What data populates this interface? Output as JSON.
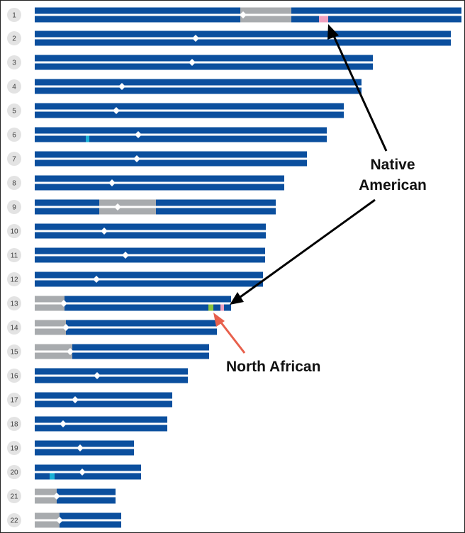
{
  "annotations": {
    "native_american": [
      "Native",
      "American"
    ],
    "north_african": "North African"
  },
  "colors": {
    "primary": "#0b4f9e",
    "gray": "#a8abae",
    "native_american": "#f0a1bf",
    "north_african": "#8cc63f",
    "cyan": "#1bb1d6",
    "number_badge": "#e3e3e3",
    "arrow_black": "#000000",
    "arrow_red": "#e8604c"
  },
  "chromosomes": [
    {
      "number": "1",
      "top": [
        {
          "ancestry": "primary"
        },
        {
          "ancestry": "gray"
        },
        {
          "ancestry": "primary"
        }
      ],
      "bottom": [
        {
          "ancestry": "primary"
        },
        {
          "ancestry": "gray"
        },
        {
          "ancestry": "primary"
        },
        {
          "ancestry": "native_american"
        },
        {
          "ancestry": "primary"
        }
      ]
    },
    {
      "number": "2",
      "top": [
        {
          "ancestry": "primary"
        }
      ],
      "bottom": [
        {
          "ancestry": "primary"
        }
      ]
    },
    {
      "number": "3",
      "top": [
        {
          "ancestry": "primary"
        }
      ],
      "bottom": [
        {
          "ancestry": "primary"
        }
      ]
    },
    {
      "number": "4",
      "top": [
        {
          "ancestry": "primary"
        }
      ],
      "bottom": [
        {
          "ancestry": "primary"
        }
      ]
    },
    {
      "number": "5",
      "top": [
        {
          "ancestry": "primary"
        }
      ],
      "bottom": [
        {
          "ancestry": "primary"
        }
      ]
    },
    {
      "number": "6",
      "top": [
        {
          "ancestry": "primary"
        }
      ],
      "bottom": [
        {
          "ancestry": "primary"
        },
        {
          "ancestry": "cyan"
        },
        {
          "ancestry": "primary"
        }
      ]
    },
    {
      "number": "7",
      "top": [
        {
          "ancestry": "primary"
        }
      ],
      "bottom": [
        {
          "ancestry": "primary"
        }
      ]
    },
    {
      "number": "8",
      "top": [
        {
          "ancestry": "primary"
        }
      ],
      "bottom": [
        {
          "ancestry": "primary"
        }
      ]
    },
    {
      "number": "9",
      "top": [
        {
          "ancestry": "primary"
        },
        {
          "ancestry": "gray"
        },
        {
          "ancestry": "primary"
        }
      ],
      "bottom": [
        {
          "ancestry": "primary"
        },
        {
          "ancestry": "gray"
        },
        {
          "ancestry": "primary"
        }
      ]
    },
    {
      "number": "10",
      "top": [
        {
          "ancestry": "primary"
        }
      ],
      "bottom": [
        {
          "ancestry": "primary"
        }
      ]
    },
    {
      "number": "11",
      "top": [
        {
          "ancestry": "primary"
        }
      ],
      "bottom": [
        {
          "ancestry": "primary"
        }
      ]
    },
    {
      "number": "12",
      "top": [
        {
          "ancestry": "primary"
        }
      ],
      "bottom": [
        {
          "ancestry": "primary"
        }
      ]
    },
    {
      "number": "13",
      "top": [
        {
          "ancestry": "gray"
        },
        {
          "ancestry": "primary"
        }
      ],
      "bottom": [
        {
          "ancestry": "gray"
        },
        {
          "ancestry": "primary"
        },
        {
          "ancestry": "north_african"
        },
        {
          "ancestry": "primary"
        },
        {
          "ancestry": "native_american"
        },
        {
          "ancestry": "primary"
        }
      ]
    },
    {
      "number": "14",
      "top": [
        {
          "ancestry": "gray"
        },
        {
          "ancestry": "primary"
        }
      ],
      "bottom": [
        {
          "ancestry": "gray"
        },
        {
          "ancestry": "primary"
        }
      ]
    },
    {
      "number": "15",
      "top": [
        {
          "ancestry": "gray"
        },
        {
          "ancestry": "primary"
        }
      ],
      "bottom": [
        {
          "ancestry": "gray"
        },
        {
          "ancestry": "primary"
        }
      ]
    },
    {
      "number": "16",
      "top": [
        {
          "ancestry": "primary"
        }
      ],
      "bottom": [
        {
          "ancestry": "primary"
        }
      ]
    },
    {
      "number": "17",
      "top": [
        {
          "ancestry": "primary"
        }
      ],
      "bottom": [
        {
          "ancestry": "primary"
        }
      ]
    },
    {
      "number": "18",
      "top": [
        {
          "ancestry": "primary"
        }
      ],
      "bottom": [
        {
          "ancestry": "primary"
        }
      ]
    },
    {
      "number": "19",
      "top": [
        {
          "ancestry": "primary"
        }
      ],
      "bottom": [
        {
          "ancestry": "primary"
        }
      ]
    },
    {
      "number": "20",
      "top": [
        {
          "ancestry": "primary"
        }
      ],
      "bottom": [
        {
          "ancestry": "primary"
        },
        {
          "ancestry": "cyan"
        },
        {
          "ancestry": "primary"
        }
      ]
    },
    {
      "number": "21",
      "top": [
        {
          "ancestry": "gray"
        },
        {
          "ancestry": "primary"
        }
      ],
      "bottom": [
        {
          "ancestry": "gray"
        },
        {
          "ancestry": "primary"
        }
      ]
    },
    {
      "number": "22",
      "top": [
        {
          "ancestry": "gray"
        },
        {
          "ancestry": "primary"
        }
      ],
      "bottom": [
        {
          "ancestry": "gray"
        },
        {
          "ancestry": "primary"
        }
      ]
    }
  ]
}
